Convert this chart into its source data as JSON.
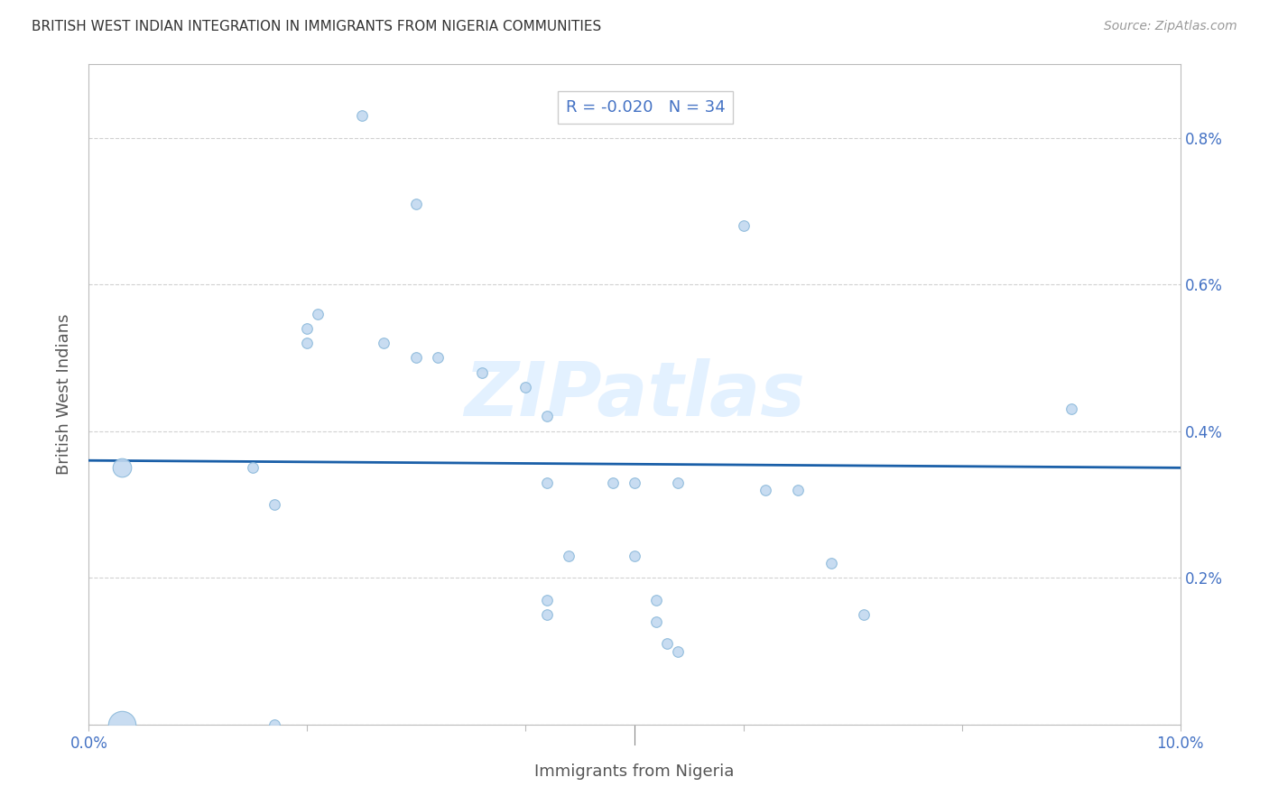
{
  "title": "BRITISH WEST INDIAN INTEGRATION IN IMMIGRANTS FROM NIGERIA COMMUNITIES",
  "source": "Source: ZipAtlas.com",
  "xlabel": "Immigrants from Nigeria",
  "ylabel": "British West Indians",
  "watermark": "ZIPatlas",
  "R": -0.02,
  "N": 34,
  "xlim": [
    0.0,
    0.1
  ],
  "ylim": [
    0.0,
    0.009
  ],
  "xticks": [
    0.0,
    0.02,
    0.04,
    0.06,
    0.08,
    0.1
  ],
  "xtick_labels": [
    "0.0%",
    "",
    "",
    "",
    "",
    "10.0%"
  ],
  "yticks": [
    0.0,
    0.002,
    0.004,
    0.006,
    0.008
  ],
  "ytick_labels_right": [
    "",
    "0.2%",
    "0.4%",
    "0.6%",
    "0.8%"
  ],
  "dot_color": "#c2d9f0",
  "dot_edge_color": "#8ab8da",
  "line_color": "#1a5fa8",
  "background_color": "#ffffff",
  "grid_color": "#cccccc",
  "title_color": "#333333",
  "source_color": "#999999",
  "axis_color": "#bbbbbb",
  "stat_blue_color": "#4472c4",
  "stat_dark_color": "#333333",
  "watermark_color": "#ddeeff",
  "scatter_points": [
    [
      0.003,
      0.0035,
      220
    ],
    [
      0.003,
      0.0,
      480
    ],
    [
      0.015,
      0.0035,
      70
    ],
    [
      0.017,
      0.003,
      70
    ],
    [
      0.017,
      0.0,
      70
    ],
    [
      0.02,
      0.0054,
      70
    ],
    [
      0.02,
      0.0052,
      70
    ],
    [
      0.021,
      0.0056,
      70
    ],
    [
      0.025,
      0.0083,
      70
    ],
    [
      0.027,
      0.0052,
      70
    ],
    [
      0.03,
      0.0071,
      70
    ],
    [
      0.03,
      0.005,
      70
    ],
    [
      0.032,
      0.005,
      70
    ],
    [
      0.036,
      0.0048,
      70
    ],
    [
      0.04,
      0.0046,
      70
    ],
    [
      0.042,
      0.0042,
      70
    ],
    [
      0.042,
      0.0033,
      70
    ],
    [
      0.042,
      0.0017,
      70
    ],
    [
      0.042,
      0.0015,
      70
    ],
    [
      0.044,
      0.0023,
      70
    ],
    [
      0.048,
      0.0033,
      70
    ],
    [
      0.05,
      0.0033,
      70
    ],
    [
      0.05,
      0.0023,
      70
    ],
    [
      0.052,
      0.0017,
      70
    ],
    [
      0.052,
      0.0014,
      70
    ],
    [
      0.053,
      0.0011,
      70
    ],
    [
      0.054,
      0.0033,
      70
    ],
    [
      0.054,
      0.001,
      70
    ],
    [
      0.06,
      0.0068,
      70
    ],
    [
      0.062,
      0.0032,
      70
    ],
    [
      0.065,
      0.0032,
      70
    ],
    [
      0.068,
      0.0022,
      70
    ],
    [
      0.071,
      0.0015,
      70
    ],
    [
      0.09,
      0.0043,
      70
    ]
  ],
  "line_y_start": 0.0036,
  "line_y_end": 0.0035
}
